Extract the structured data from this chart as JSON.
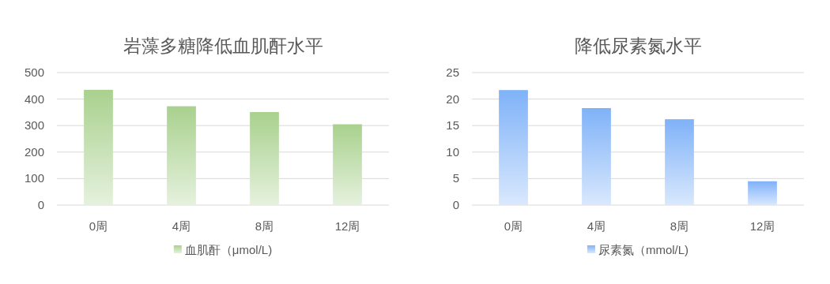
{
  "chart_data": [
    {
      "type": "bar",
      "title": "岩藻多糖降低血肌酐水平",
      "categories": [
        "0周",
        "4周",
        "8周",
        "12周"
      ],
      "series": [
        {
          "name": "血肌酐（μmol/L)",
          "color": "#a9d18e",
          "values": [
            435,
            373,
            351,
            305
          ]
        }
      ],
      "ylim": [
        0,
        500
      ],
      "yticks": [
        0,
        100,
        200,
        300,
        400,
        500
      ],
      "grid": "y",
      "legend": "bottom"
    },
    {
      "type": "bar",
      "title": "降低尿素氮水平",
      "categories": [
        "0周",
        "4周",
        "8周",
        "12周"
      ],
      "series": [
        {
          "name": "尿素氮（mmol/L)",
          "color": "#7fb2f8",
          "values": [
            21.7,
            18.3,
            16.2,
            4.5
          ]
        }
      ],
      "ylim": [
        0,
        25
      ],
      "yticks": [
        0,
        5,
        10,
        15,
        20,
        25
      ],
      "grid": "y",
      "legend": "bottom"
    }
  ]
}
